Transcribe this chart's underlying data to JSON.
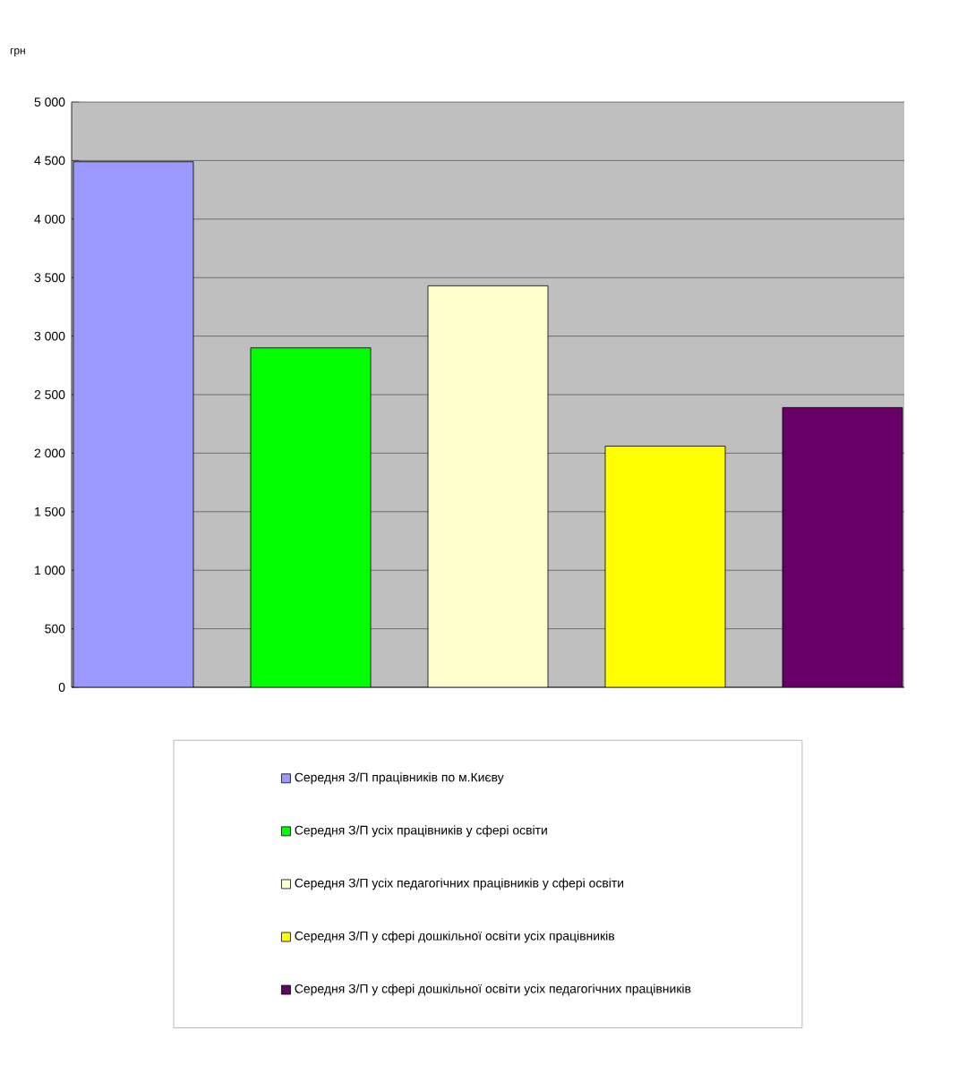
{
  "chart_data": {
    "type": "bar",
    "ylabel": "грн",
    "categories": [
      null
    ],
    "series": [
      {
        "name": "Середня З/П працівників по м.Києву",
        "color": "#9999ff",
        "values": [
          4490
        ]
      },
      {
        "name": "Середня З/П усіх працівників у сфері освіти",
        "color": "#00ff00",
        "values": [
          2900
        ]
      },
      {
        "name": "Середня З/П усіх педагогічних працівників у сфері освіти",
        "color": "#ffffcc",
        "values": [
          3430
        ]
      },
      {
        "name": "Середня З/П у сфері дошкільної освіти усіх працівників",
        "color": "#ffff00",
        "values": [
          2060
        ]
      },
      {
        "name": "Середня З/П у сфері дошкільної освіти усіх педагогічних працівників",
        "color": "#660066",
        "values": [
          2390
        ]
      }
    ],
    "ylim": [
      0,
      5000
    ],
    "yticks": [
      0,
      500,
      {
        "value": 1000,
        "label": "1 000"
      },
      {
        "value": 1500,
        "label": "1 500"
      },
      {
        "value": 2000,
        "label": "2 000"
      },
      {
        "value": 2500,
        "label": "2 500"
      },
      {
        "value": 3000,
        "label": "3 000"
      },
      {
        "value": 3500,
        "label": "3 500"
      },
      {
        "value": 4000,
        "label": "4 000"
      },
      {
        "value": 4500,
        "label": "4 500"
      },
      {
        "value": 5000,
        "label": "5 000"
      }
    ],
    "grid": "y",
    "legend": "bottom"
  }
}
